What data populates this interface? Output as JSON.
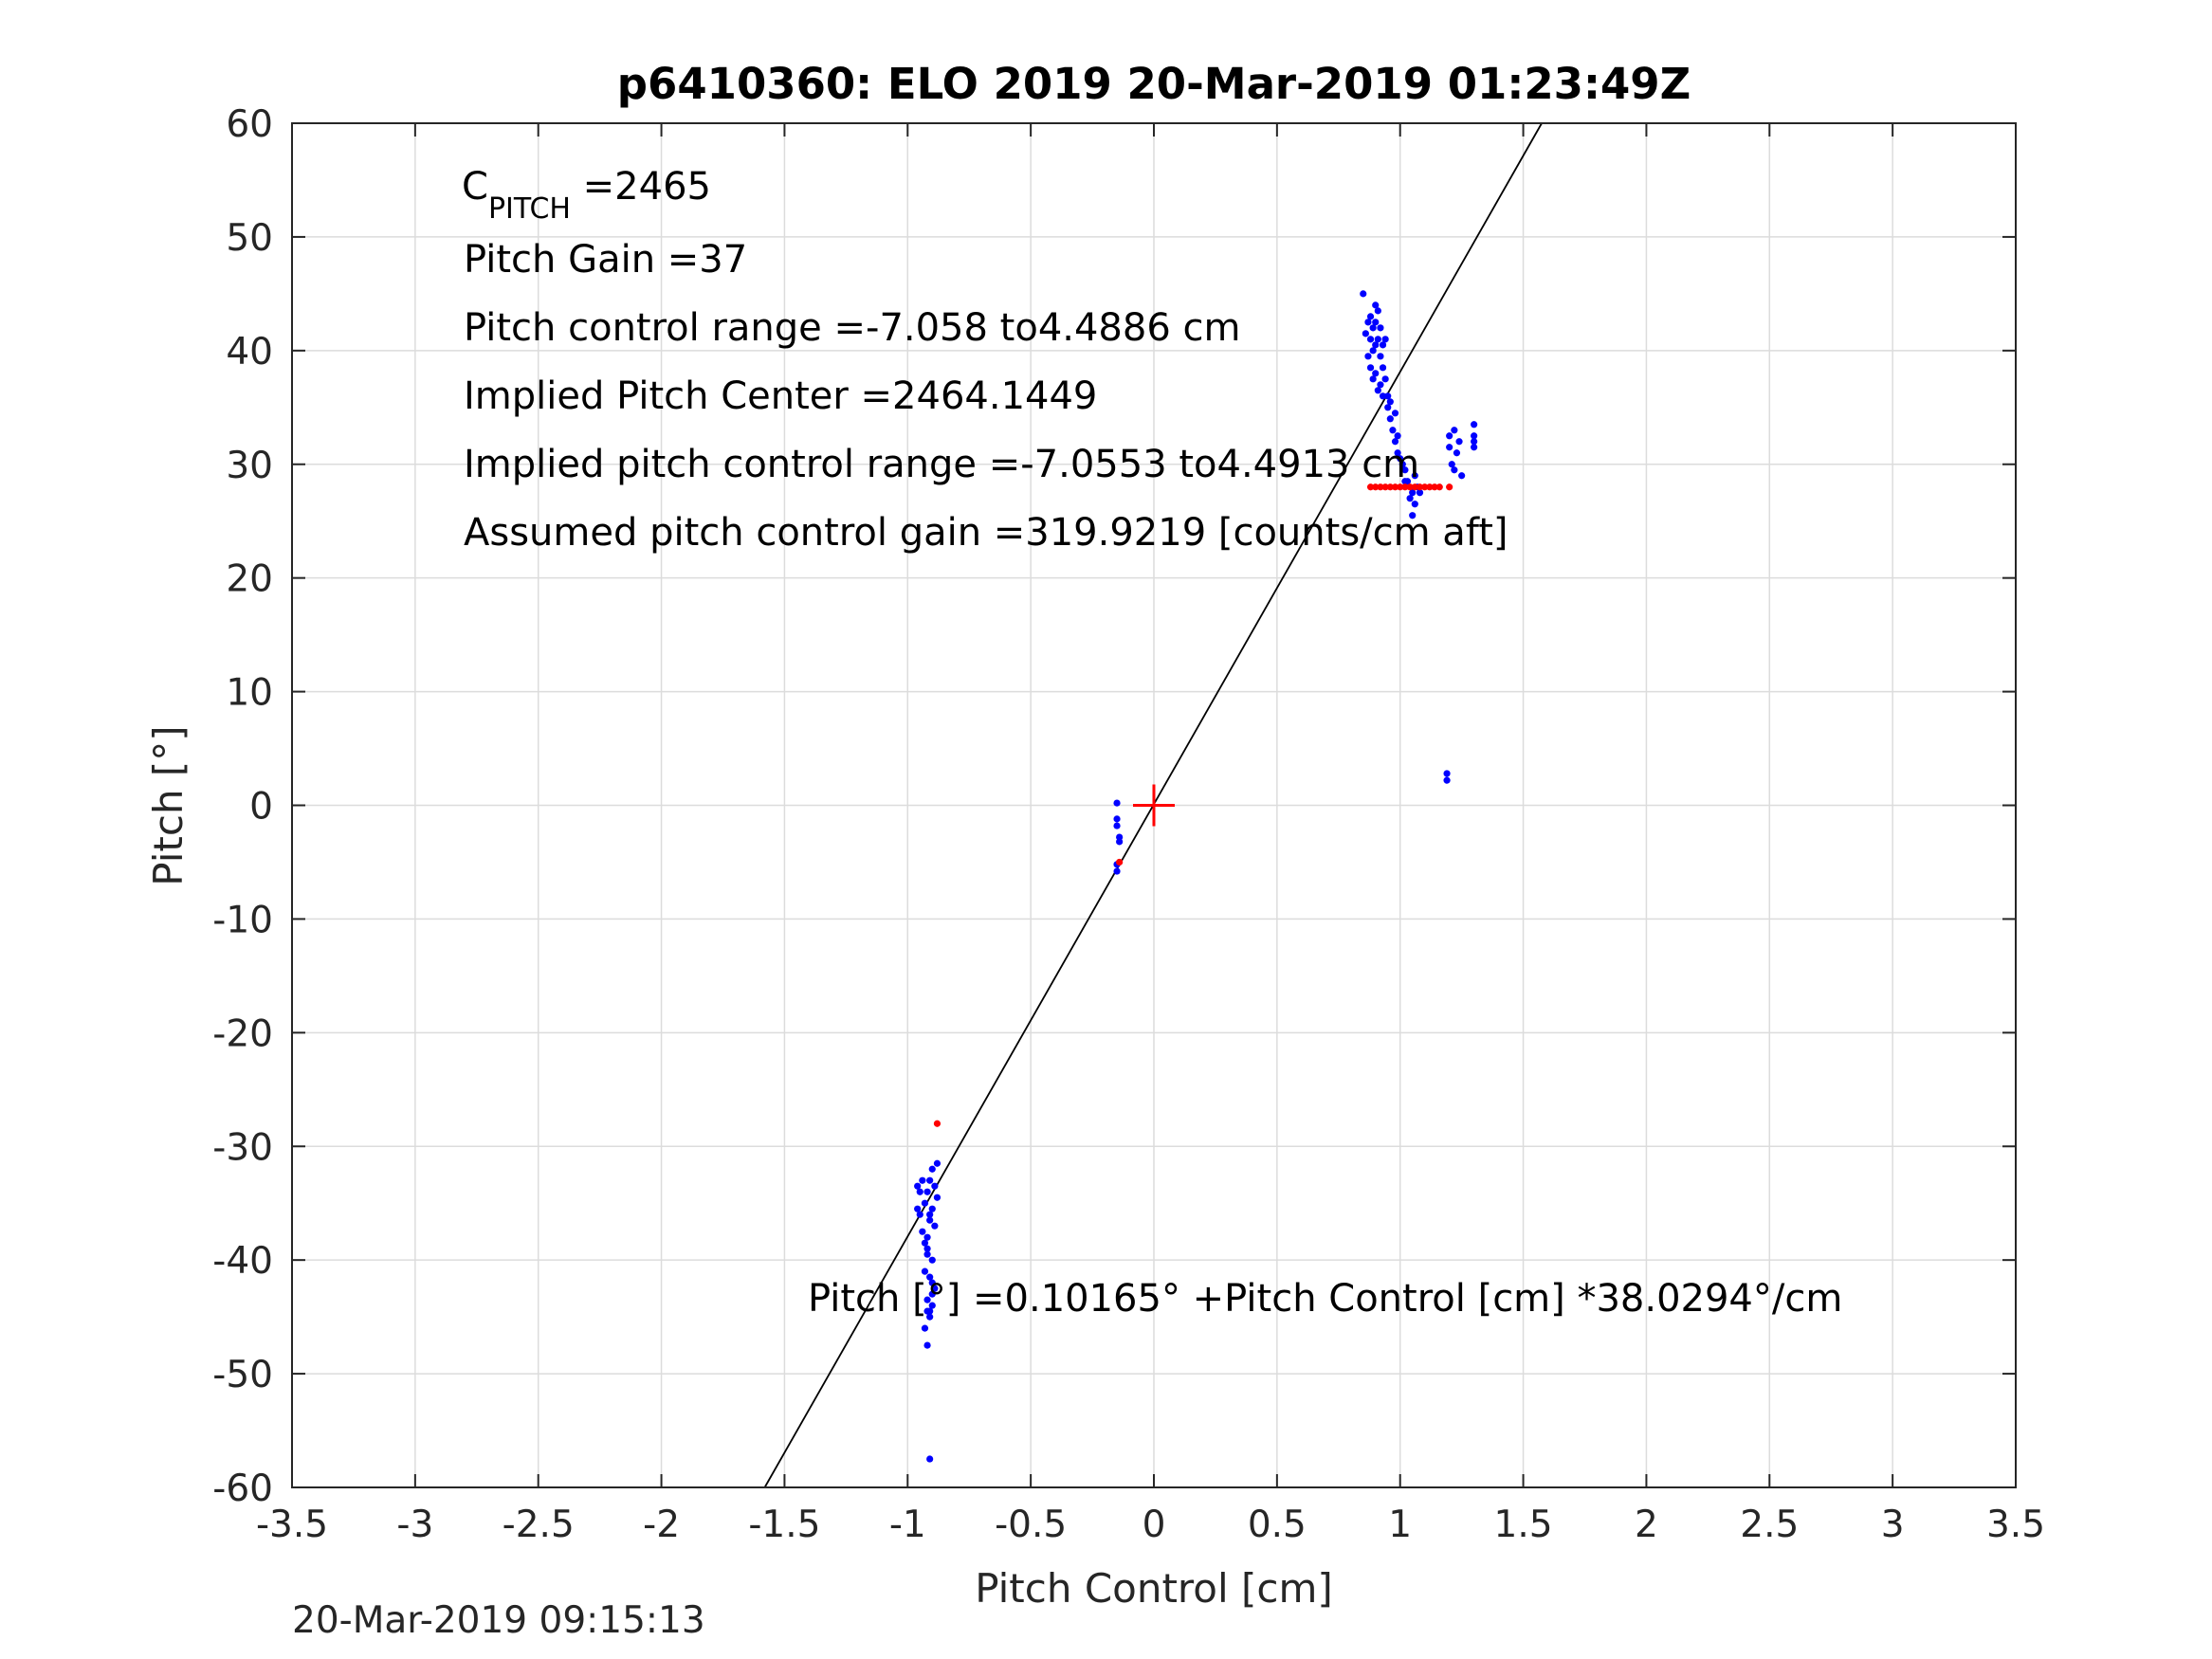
{
  "chart_data": {
    "type": "scatter",
    "title": "p6410360: ELO 2019 20-Mar-2019 01:23:49Z",
    "xlabel": "Pitch Control [cm]",
    "ylabel": "Pitch [°]",
    "xlim": [
      -3.5,
      3.5
    ],
    "ylim": [
      -60,
      60
    ],
    "xticks": [
      "-3.5",
      "-3",
      "-2.5",
      "-2",
      "-1.5",
      "-1",
      "-0.5",
      "0",
      "0.5",
      "1",
      "1.5",
      "2",
      "2.5",
      "3",
      "3.5"
    ],
    "yticks": [
      "60",
      "50",
      "40",
      "30",
      "20",
      "10",
      "0",
      "-10",
      "-20",
      "-30",
      "-40",
      "-50",
      "-60"
    ],
    "grid": true,
    "timestamp": "20-Mar-2019 09:15:13",
    "annotations": {
      "c_pitch_symbol": "C",
      "c_pitch_subscript": "PITCH",
      "c_pitch_value": " =2465",
      "pitch_gain": "Pitch Gain =37",
      "pitch_control_range": "Pitch control range =-7.058 to4.4886 cm",
      "implied_pitch_center": "Implied Pitch Center =2464.1449",
      "implied_pitch_control_range": "Implied pitch control range =-7.0553 to4.4913 cm",
      "assumed_gain": "Assumed pitch control gain =319.9219 [counts/cm aft]",
      "fit_equation": "Pitch [°] =0.10165° +Pitch Control [cm] *38.0294°/cm"
    },
    "fit_line": {
      "intercept": 0.10165,
      "slope": 38.0294,
      "color": "#000000"
    },
    "center_marker": {
      "x": 0,
      "y": 0,
      "color": "#ff0000"
    },
    "series": [
      {
        "color": "#0000ff",
        "x": [
          0.85,
          0.86,
          0.87,
          0.87,
          0.88,
          0.88,
          0.88,
          0.89,
          0.89,
          0.89,
          0.9,
          0.9,
          0.9,
          0.9,
          0.91,
          0.91,
          0.91,
          0.92,
          0.92,
          0.92,
          0.93,
          0.93,
          0.93,
          0.94,
          0.94,
          0.95,
          0.95,
          0.96,
          0.96,
          0.97,
          0.98,
          0.98,
          0.99,
          0.99,
          1.0,
          1.01,
          1.02,
          1.02,
          1.03,
          1.04,
          1.05,
          1.05,
          1.06,
          1.06,
          1.07,
          1.08,
          1.2,
          1.2,
          1.21,
          1.22,
          1.22,
          1.23,
          1.24,
          1.25,
          1.3,
          1.3,
          1.3,
          1.3,
          1.19,
          1.19,
          -0.15,
          -0.15,
          -0.15,
          -0.14,
          -0.14,
          -0.15,
          -0.15,
          -0.96,
          -0.96,
          -0.95,
          -0.95,
          -0.94,
          -0.94,
          -0.93,
          -0.93,
          -0.93,
          -0.92,
          -0.92,
          -0.92,
          -0.91,
          -0.91,
          -0.9,
          -0.9,
          -0.9,
          -0.89,
          -0.89,
          -0.89,
          -0.88,
          -0.88,
          -0.92,
          -0.91,
          -0.9,
          -0.93,
          -0.92,
          -0.91,
          -0.9,
          -0.92,
          -0.91,
          -0.9,
          -0.92,
          -0.91,
          -0.91
        ],
        "y": [
          45.0,
          41.5,
          42.5,
          39.5,
          43.0,
          41.0,
          38.5,
          42.0,
          40.0,
          37.5,
          44.0,
          42.5,
          40.5,
          38.0,
          43.5,
          41.0,
          36.5,
          42.0,
          39.5,
          37.0,
          40.5,
          38.5,
          36.0,
          41.0,
          37.5,
          36.0,
          35.0,
          35.5,
          34.0,
          33.0,
          34.5,
          32.0,
          32.5,
          31.0,
          30.5,
          30.0,
          29.5,
          28.5,
          28.5,
          27.0,
          27.5,
          25.5,
          29.0,
          26.5,
          28.0,
          27.5,
          32.5,
          31.5,
          30.0,
          33.0,
          29.5,
          31.0,
          32.0,
          29.0,
          33.5,
          32.5,
          32.0,
          31.5,
          2.8,
          2.2,
          0.2,
          -1.2,
          -1.8,
          -2.8,
          -3.2,
          -5.2,
          -5.8,
          -33.5,
          -35.5,
          -34.0,
          -36.0,
          -33.0,
          -37.5,
          -35.0,
          -38.5,
          -41.0,
          -34.0,
          -39.5,
          -43.5,
          -33.0,
          -36.5,
          -32.0,
          -35.5,
          -40.0,
          -33.5,
          -37.0,
          -42.5,
          -31.5,
          -34.5,
          -44.5,
          -45.0,
          -43.0,
          -46.0,
          -38.0,
          -41.5,
          -44.0,
          -47.5,
          -57.5,
          -42.0,
          -39.0,
          -36.0,
          -44.5
        ]
      },
      {
        "color": "#ff0000",
        "x": [
          0.88,
          0.9,
          0.92,
          0.94,
          0.96,
          0.98,
          1.0,
          1.02,
          1.04,
          1.06,
          1.08,
          1.1,
          1.12,
          1.14,
          1.16,
          1.2,
          -0.14,
          -0.88
        ],
        "y": [
          28,
          28,
          28,
          28,
          28,
          28,
          28,
          28,
          28,
          28,
          28,
          28,
          28,
          28,
          28,
          28,
          -5,
          -28
        ]
      }
    ]
  }
}
